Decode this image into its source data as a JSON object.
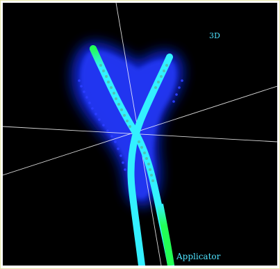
{
  "viewport": {
    "view_label": "3D",
    "structure_label": "Applicator"
  },
  "colors": {
    "background": "#000000",
    "organ_volume": "#1a2dff",
    "applicator_cyan": "#33f0ff",
    "applicator_green": "#22ff55",
    "source_dots": "#4cc4b8",
    "axis_lines": "#ffffff",
    "label_text": "#4fe3ff"
  },
  "icons": {
    "crosshair": "crosshair-axes-icon"
  }
}
